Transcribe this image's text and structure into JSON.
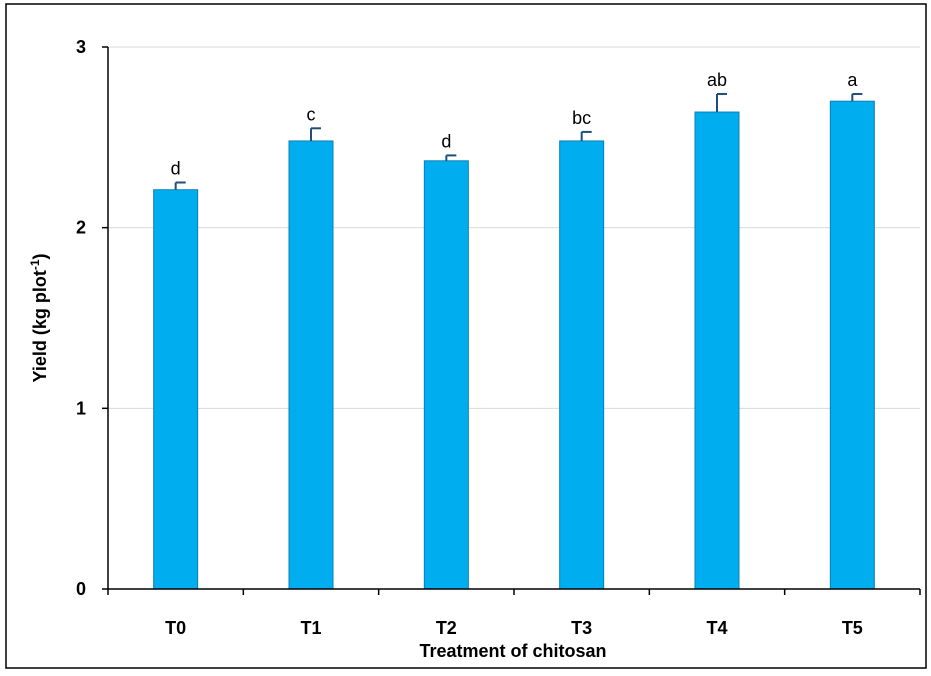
{
  "chart_data": {
    "type": "bar",
    "title": "",
    "xlabel": "Treatment of chitosan",
    "ylabel": {
      "main": "Yield (kg plot",
      "sup": "-1",
      "close": ")"
    },
    "categories": [
      "T0",
      "T1",
      "T2",
      "T3",
      "T4",
      "T5"
    ],
    "values": [
      2.21,
      2.48,
      2.37,
      2.48,
      2.64,
      2.7
    ],
    "errors": [
      0.04,
      0.07,
      0.03,
      0.05,
      0.1,
      0.04
    ],
    "letters": [
      "d",
      "c",
      "d",
      "bc",
      "ab",
      "a"
    ],
    "ylim": [
      0,
      3
    ],
    "yticks": [
      "0",
      "1",
      "2",
      "3"
    ],
    "grid": true,
    "colors": {
      "bar_fill": "#00AEEF",
      "bar_stroke": "#0A7FB8",
      "error_bar": "#1F4E79",
      "grid": "#D9D9D9",
      "axis": "#000000"
    }
  }
}
